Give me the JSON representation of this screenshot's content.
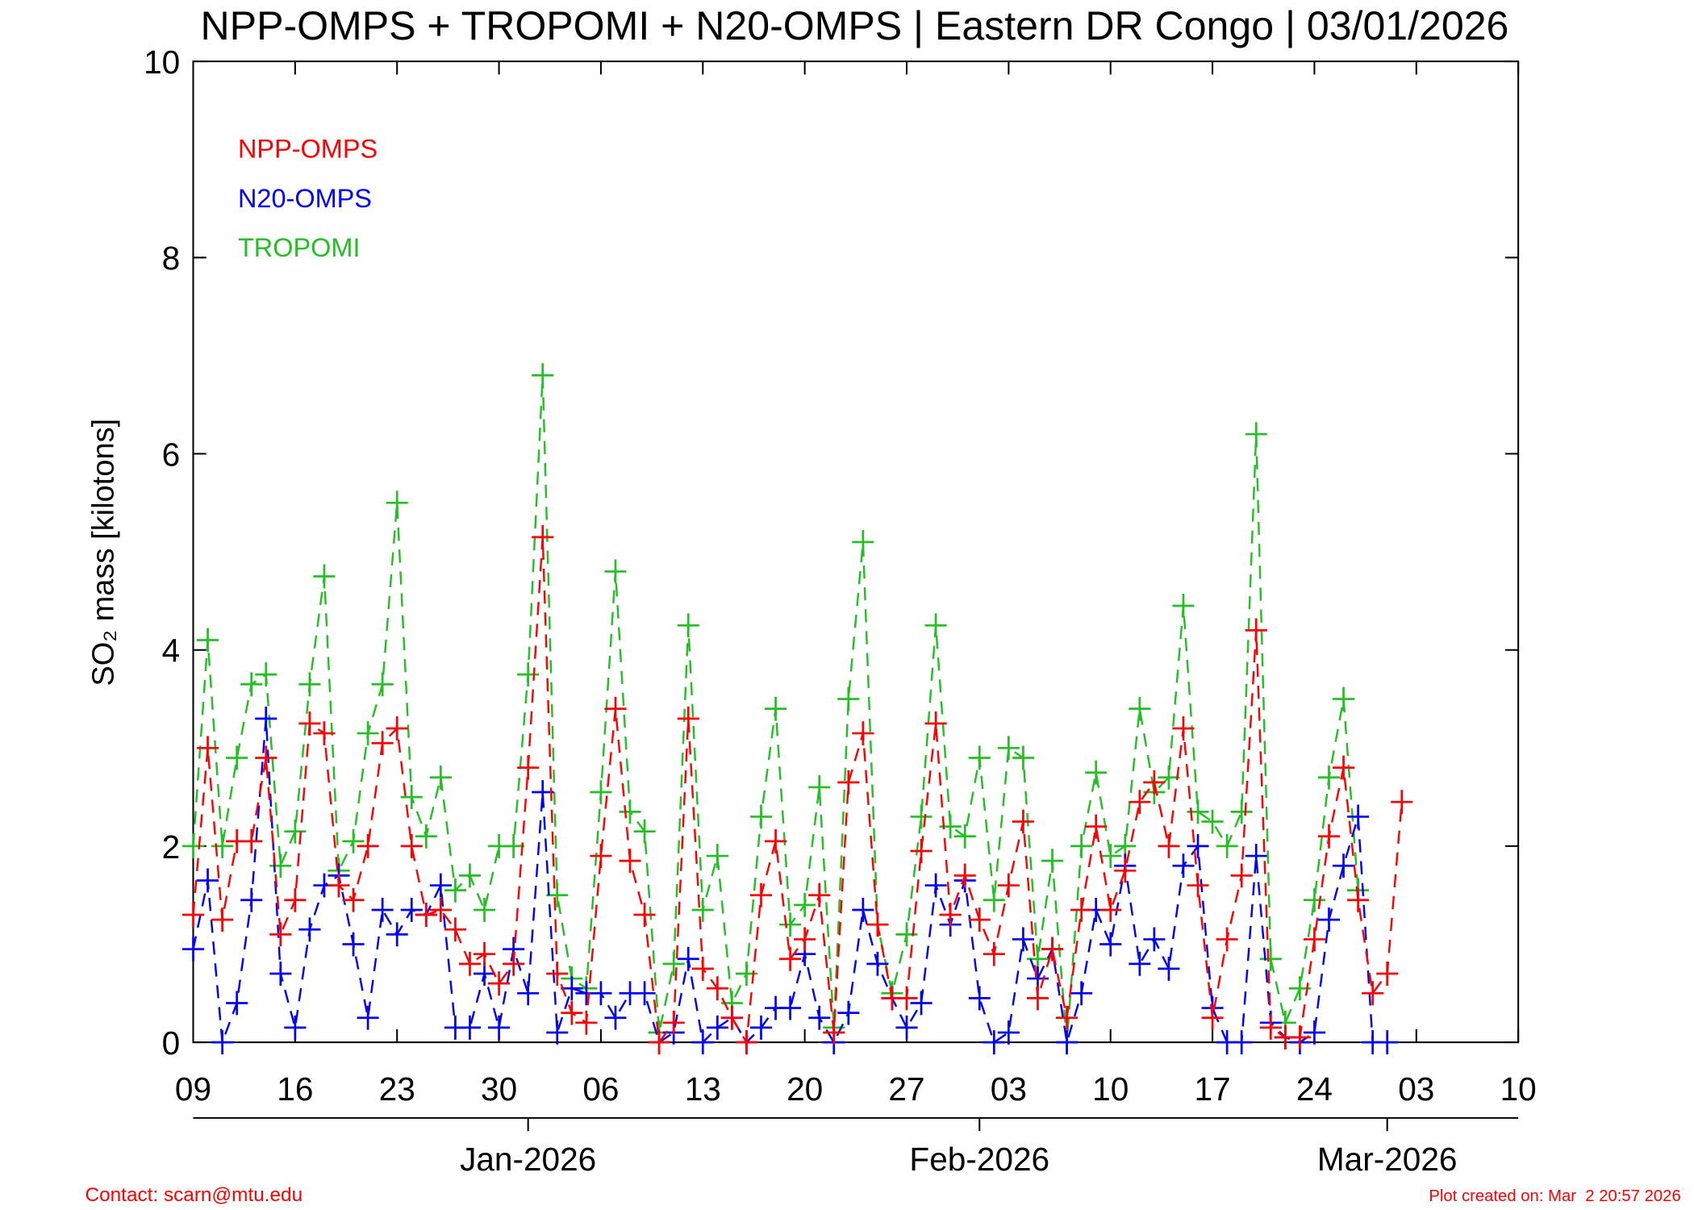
{
  "chart_data": {
    "type": "line",
    "title": "NPP-OMPS + TROPOMI + N20-OMPS | Eastern DR Congo | 03/01/2026",
    "ylabel": "SO₂ mass [kilotons]",
    "footer_left": "Contact: scarn@mtu.edu",
    "footer_right": "Plot created on: Mar  2 20:57 2026",
    "x": [
      0,
      1,
      2,
      3,
      4,
      5,
      6,
      7,
      8,
      9,
      10,
      11,
      12,
      13,
      14,
      15,
      16,
      17,
      18,
      19,
      20,
      21,
      22,
      23,
      24,
      25,
      26,
      27,
      28,
      29,
      30,
      31,
      32,
      33,
      34,
      35,
      36,
      37,
      38,
      39,
      40,
      41,
      42,
      43,
      44,
      45,
      46,
      47,
      48,
      49,
      50,
      51,
      52,
      53,
      54,
      55,
      56,
      57,
      58,
      59,
      60,
      61,
      62,
      63,
      64,
      65,
      66,
      67,
      68,
      69,
      70,
      71,
      72,
      73,
      74,
      75,
      76,
      77,
      78,
      79,
      80,
      81,
      82,
      83
    ],
    "xlim": [
      0,
      91
    ],
    "xticks": [
      {
        "value": 0,
        "label": "09"
      },
      {
        "value": 7,
        "label": "16"
      },
      {
        "value": 14,
        "label": "23"
      },
      {
        "value": 21,
        "label": "30"
      },
      {
        "value": 28,
        "label": "06"
      },
      {
        "value": 35,
        "label": "13"
      },
      {
        "value": 42,
        "label": "20"
      },
      {
        "value": 49,
        "label": "27"
      },
      {
        "value": 56,
        "label": "03"
      },
      {
        "value": 63,
        "label": "10"
      },
      {
        "value": 70,
        "label": "17"
      },
      {
        "value": 77,
        "label": "24"
      },
      {
        "value": 84,
        "label": "03"
      },
      {
        "value": 91,
        "label": "10"
      }
    ],
    "x2ticks": [
      {
        "value": 23,
        "label": "Jan-2026"
      },
      {
        "value": 54,
        "label": "Feb-2026"
      },
      {
        "value": 82,
        "label": "Mar-2026"
      }
    ],
    "ylim": [
      0,
      10
    ],
    "yticks": [
      0,
      2,
      4,
      6,
      8,
      10
    ],
    "legend": "upper left",
    "series": [
      {
        "name": "NPP-OMPS",
        "color": "#ff0000",
        "values": [
          1.3,
          3.0,
          1.25,
          2.05,
          2.05,
          2.9,
          1.1,
          1.45,
          3.25,
          3.15,
          1.6,
          1.45,
          2.0,
          3.05,
          3.2,
          2.0,
          1.3,
          1.35,
          1.15,
          0.8,
          0.9,
          0.6,
          0.8,
          2.8,
          5.15,
          0.7,
          0.3,
          0.2,
          1.9,
          3.4,
          1.85,
          1.3,
          0,
          0.2,
          3.3,
          0.75,
          0.55,
          0.25,
          0,
          1.5,
          2.05,
          0.85,
          1.05,
          1.5,
          0.1,
          2.65,
          3.15,
          1.2,
          0.45,
          0.45,
          1.95,
          3.25,
          1.3,
          1.7,
          1.25,
          0.9,
          1.6,
          2.25,
          0.45,
          0.95,
          0.25,
          1.35,
          2.2,
          1.35,
          1.75,
          2.45,
          2.65,
          2.0,
          3.2,
          1.6,
          0.25,
          1.05,
          1.7,
          4.2,
          0.15,
          0.05,
          0.05,
          1.05,
          2.1,
          2.8,
          1.45,
          0.5,
          0.7,
          2.45
        ]
      },
      {
        "name": "N20-OMPS",
        "color": "#0000ff",
        "values": [
          0.95,
          1.65,
          0,
          0.4,
          1.45,
          3.3,
          0.7,
          0.15,
          1.15,
          1.6,
          1.7,
          1.0,
          0.25,
          1.35,
          1.1,
          1.35,
          1.3,
          1.6,
          0.15,
          0.15,
          0.7,
          0.15,
          0.95,
          0.5,
          2.55,
          0.1,
          0.55,
          0.5,
          0.5,
          0.25,
          0.5,
          0.5,
          0,
          0.1,
          0.85,
          0,
          0.15,
          0.25,
          0,
          0.15,
          0.35,
          0.35,
          0.9,
          0.25,
          0,
          0.3,
          1.35,
          0.8,
          0.45,
          0.15,
          0.4,
          1.6,
          1.2,
          1.65,
          0.45,
          0,
          0.1,
          1.05,
          0.65,
          0.95,
          0,
          0.5,
          1.35,
          1.0,
          1.8,
          0.8,
          1.05,
          0.75,
          1.8,
          2.0,
          0.35,
          0,
          0,
          1.9,
          0.2,
          0.05,
          0,
          0.1,
          1.25,
          1.8,
          2.3,
          0,
          0,
          null
        ]
      },
      {
        "name": "TROPOMI",
        "color": "#22c022",
        "values": [
          2.0,
          4.1,
          2.0,
          2.9,
          3.65,
          3.75,
          1.8,
          2.15,
          3.65,
          4.75,
          1.75,
          2.05,
          3.15,
          3.65,
          5.5,
          2.5,
          2.1,
          2.7,
          1.55,
          1.7,
          1.35,
          2.0,
          2.0,
          3.75,
          6.8,
          1.5,
          0.65,
          0.55,
          2.55,
          4.8,
          2.35,
          2.15,
          0.1,
          0.8,
          4.25,
          1.35,
          1.9,
          0.4,
          0.7,
          2.3,
          3.4,
          1.2,
          1.4,
          2.6,
          0.15,
          3.5,
          5.1,
          1.2,
          0.5,
          1.1,
          2.3,
          4.25,
          2.2,
          2.1,
          2.9,
          1.45,
          3.0,
          2.9,
          0.85,
          1.85,
          0,
          2.0,
          2.75,
          1.9,
          2.0,
          3.4,
          2.55,
          2.7,
          4.45,
          2.35,
          2.25,
          2.0,
          2.35,
          6.2,
          0.85,
          0.2,
          0.55,
          1.45,
          2.7,
          3.5,
          1.55,
          null,
          null,
          null
        ]
      }
    ]
  }
}
